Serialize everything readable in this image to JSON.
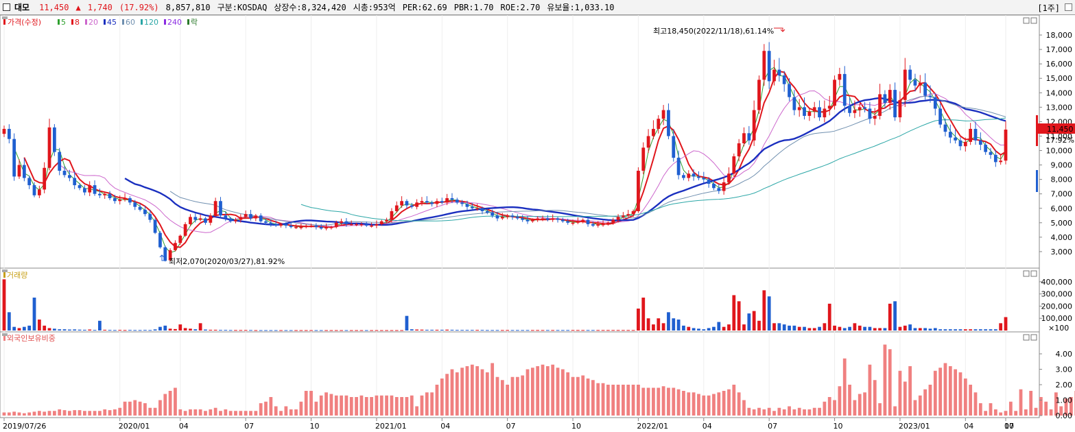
{
  "header": {
    "name": "대모",
    "price": "11,450",
    "change_arrow": "▲",
    "change": "1,740",
    "change_pct": "(17.92%)",
    "volume": "8,857,810",
    "market": "구분:KOSDAQ",
    "shares": "상장수:8,324,420",
    "mcap": "시총:953억",
    "per": "PER:62.69",
    "pbr": "PBR:1.70",
    "roe": "ROE:2.70",
    "reserve": "유보율:1,033.10",
    "period": "[1주]"
  },
  "price_legend": {
    "main": "가격(수정)",
    "items": [
      {
        "label": "5",
        "color": "#2ea02e"
      },
      {
        "label": "8",
        "color": "#e0161c"
      },
      {
        "label": "20",
        "color": "#cc66cc"
      },
      {
        "label": "45",
        "color": "#1a2fbf"
      },
      {
        "label": "60",
        "color": "#6f8faf"
      },
      {
        "label": "120",
        "color": "#2aa6a6"
      },
      {
        "label": "240",
        "color": "#8a2be2"
      },
      {
        "label": "락",
        "color": "#2b7a2b"
      }
    ]
  },
  "annotations": {
    "high": "최고18,450(2022/11/18),61.14%",
    "low": "최저2,070(2020/03/27),81.92%"
  },
  "last_price_tag": "11,450",
  "last_pct_tag": "17.92%",
  "volume_panel": {
    "title": "거래량",
    "unit": "×100"
  },
  "foreign_panel": {
    "title": "외국인보유비중"
  },
  "colors": {
    "up": "#e0161c",
    "down": "#1f5fd0",
    "foreign": "#f08080"
  },
  "chart_data": [
    {
      "type": "candlestick",
      "title": "",
      "ylim": [
        2000,
        19000
      ],
      "y_ticks": [
        "3,000",
        "4,000",
        "5,000",
        "6,000",
        "7,000",
        "8,000",
        "9,000",
        "10,000",
        "11,000",
        "12,000",
        "13,000",
        "14,000",
        "15,000",
        "16,000",
        "17,000",
        "18,000"
      ],
      "x_ticks": [
        "2019/07/26",
        "2020/01",
        "04",
        "07",
        "10",
        "2021/01",
        "04",
        "07",
        "10",
        "2022/01",
        "04",
        "07",
        "10",
        "2023/01",
        "04",
        "07",
        "10"
      ],
      "close": [
        11500,
        10800,
        8200,
        9000,
        8100,
        7600,
        6900,
        7300,
        8800,
        11600,
        9900,
        8600,
        8300,
        8100,
        7600,
        7400,
        7100,
        7600,
        7000,
        6900,
        7000,
        6700,
        6500,
        6600,
        6700,
        6400,
        6100,
        5900,
        5600,
        5200,
        4300,
        3300,
        2400,
        3100,
        3600,
        4100,
        4900,
        5400,
        5200,
        5300,
        5000,
        5500,
        6500,
        5500,
        5300,
        5100,
        5200,
        5400,
        5600,
        5300,
        5500,
        5100,
        5000,
        4900,
        4800,
        4900,
        4800,
        4700,
        4700,
        4700,
        4800,
        4800,
        4700,
        4600,
        4700,
        4700,
        5000,
        5100,
        4900,
        4900,
        4900,
        4900,
        4800,
        4800,
        4900,
        5100,
        5200,
        5800,
        6200,
        6500,
        6200,
        6100,
        6400,
        6500,
        6400,
        6300,
        6500,
        6400,
        6700,
        6600,
        6400,
        6300,
        6100,
        6000,
        6000,
        5800,
        5700,
        5500,
        5300,
        5400,
        5500,
        5400,
        5300,
        5200,
        5100,
        5200,
        5300,
        5300,
        5200,
        5300,
        5200,
        5100,
        5000,
        5000,
        5100,
        5200,
        4900,
        4800,
        4900,
        4900,
        5000,
        5200,
        5400,
        5500,
        5600,
        5800,
        8600,
        10200,
        11000,
        11500,
        12200,
        12800,
        11000,
        9500,
        8300,
        8100,
        8400,
        8200,
        8100,
        8000,
        7700,
        7400,
        7200,
        7800,
        8400,
        9600,
        10500,
        11200,
        10700,
        12800,
        14900,
        16900,
        14800,
        15600,
        15200,
        14600,
        13700,
        12800,
        13000,
        12400,
        12700,
        13000,
        12300,
        12900,
        13100,
        14900,
        15300,
        13100,
        12600,
        12800,
        13000,
        12900,
        12200,
        12400,
        13900,
        13300,
        14200,
        12300,
        13500,
        15600,
        14900,
        14500,
        14700,
        13800,
        13700,
        12900,
        11800,
        11300,
        10900,
        10700,
        10300,
        10600,
        11500,
        10700,
        10400,
        9900,
        9700,
        9200,
        9300,
        11450
      ],
      "volume": [
        420000,
        150000,
        30000,
        20000,
        30000,
        40000,
        270000,
        90000,
        40000,
        20000,
        15000,
        10000,
        10000,
        8000,
        9000,
        7000,
        6000,
        8000,
        5000,
        80000,
        6000,
        5000,
        4000,
        5000,
        4000,
        5000,
        4000,
        4000,
        5000,
        4000,
        9000,
        30000,
        40000,
        15000,
        12000,
        50000,
        20000,
        15000,
        10000,
        60000,
        8000,
        6000,
        6000,
        5000,
        5000,
        4000,
        4000,
        4000,
        4000,
        4000,
        3000,
        3000,
        3000,
        3000,
        3000,
        3000,
        3000,
        3000,
        3000,
        3000,
        3000,
        3000,
        3000,
        3000,
        3000,
        3000,
        3000,
        3000,
        3000,
        3000,
        3000,
        3000,
        3000,
        3000,
        3000,
        3000,
        3000,
        3000,
        3000,
        3000,
        120000,
        10000,
        8000,
        7000,
        6000,
        6000,
        6000,
        6000,
        7000,
        6000,
        5000,
        5000,
        5000,
        5000,
        5000,
        5000,
        4000,
        4000,
        4000,
        4000,
        4000,
        4000,
        4000,
        4000,
        4000,
        4000,
        4000,
        4000,
        4000,
        4000,
        4000,
        4000,
        4000,
        4000,
        4000,
        4000,
        4000,
        4000,
        4000,
        4000,
        4000,
        4000,
        4000,
        4000,
        4000,
        4000,
        180000,
        270000,
        100000,
        50000,
        100000,
        60000,
        150000,
        100000,
        90000,
        40000,
        30000,
        20000,
        15000,
        10000,
        20000,
        30000,
        70000,
        30000,
        50000,
        290000,
        240000,
        50000,
        140000,
        160000,
        80000,
        330000,
        280000,
        60000,
        60000,
        50000,
        40000,
        40000,
        30000,
        30000,
        20000,
        20000,
        30000,
        60000,
        220000,
        40000,
        30000,
        20000,
        30000,
        60000,
        40000,
        30000,
        30000,
        20000,
        20000,
        20000,
        220000,
        240000,
        30000,
        40000,
        50000,
        20000,
        20000,
        20000,
        15000,
        20000,
        10000,
        10000,
        10000,
        10000,
        10000,
        10000,
        10000,
        10000,
        10000,
        10000,
        10000,
        10000,
        60000,
        110000
      ],
      "foreign_pct": [
        0.2,
        0.2,
        0.25,
        0.2,
        0.15,
        0.2,
        0.25,
        0.3,
        0.25,
        0.3,
        0.3,
        0.4,
        0.35,
        0.3,
        0.35,
        0.35,
        0.3,
        0.3,
        0.3,
        0.3,
        0.4,
        0.35,
        0.4,
        0.5,
        0.9,
        0.9,
        1.0,
        0.9,
        0.8,
        0.5,
        0.5,
        1.0,
        1.4,
        1.6,
        1.8,
        0.4,
        0.3,
        0.4,
        0.4,
        0.4,
        0.3,
        0.4,
        0.5,
        0.3,
        0.4,
        0.3,
        0.3,
        0.3,
        0.3,
        0.3,
        0.3,
        0.8,
        0.9,
        1.2,
        0.6,
        0.3,
        0.6,
        0.4,
        0.4,
        0.9,
        1.6,
        1.6,
        0.9,
        1.3,
        1.5,
        1.4,
        1.3,
        1.3,
        1.3,
        1.2,
        1.2,
        1.3,
        1.2,
        1.2,
        1.3,
        1.3,
        1.3,
        1.3,
        1.2,
        1.2,
        1.2,
        1.3,
        0.6,
        1.3,
        1.5,
        1.5,
        2.0,
        2.4,
        2.7,
        3.0,
        2.8,
        3.1,
        3.2,
        3.3,
        3.2,
        3.0,
        2.8,
        3.4,
        2.5,
        2.3,
        2.0,
        2.5,
        2.5,
        2.6,
        3.0,
        3.1,
        3.2,
        3.3,
        3.2,
        3.3,
        3.1,
        3.0,
        2.8,
        2.5,
        2.5,
        2.6,
        2.4,
        2.3,
        2.1,
        2.1,
        2.0,
        2.0,
        2.0,
        2.0,
        2.0,
        2.0,
        2.0,
        1.8,
        1.8,
        1.8,
        1.8,
        1.9,
        1.8,
        1.8,
        1.7,
        1.6,
        1.5,
        1.5,
        1.4,
        1.3,
        1.3,
        1.4,
        1.5,
        1.6,
        1.7,
        2.0,
        1.5,
        1.0,
        0.5,
        0.4,
        0.5,
        0.4,
        0.5,
        0.3,
        0.5,
        0.4,
        0.6,
        0.4,
        0.5,
        0.4,
        0.4,
        0.5,
        0.5,
        0.9,
        1.2,
        1.0,
        1.9,
        3.7,
        2.0,
        1.0,
        1.4,
        1.5,
        3.3,
        2.3,
        0.8,
        4.6,
        4.3,
        0.6,
        2.9,
        2.2,
        3.2,
        1.0,
        1.3,
        1.7,
        2.0,
        2.9,
        3.1,
        3.4,
        3.2,
        3.0,
        2.8,
        2.4,
        2.0,
        1.5,
        0.8,
        0.3,
        0.8,
        0.4,
        0.2,
        0.3,
        0.9,
        0.3,
        1.7,
        0.4,
        1.6,
        0.5,
        1.2,
        0.9,
        0.4,
        1.5,
        0.6,
        1.1,
        1.2,
        1.6,
        0.4,
        0.3,
        1.3
      ],
      "ma_legend": [
        "5",
        "8",
        "20",
        "45",
        "60",
        "120",
        "240"
      ]
    }
  ]
}
